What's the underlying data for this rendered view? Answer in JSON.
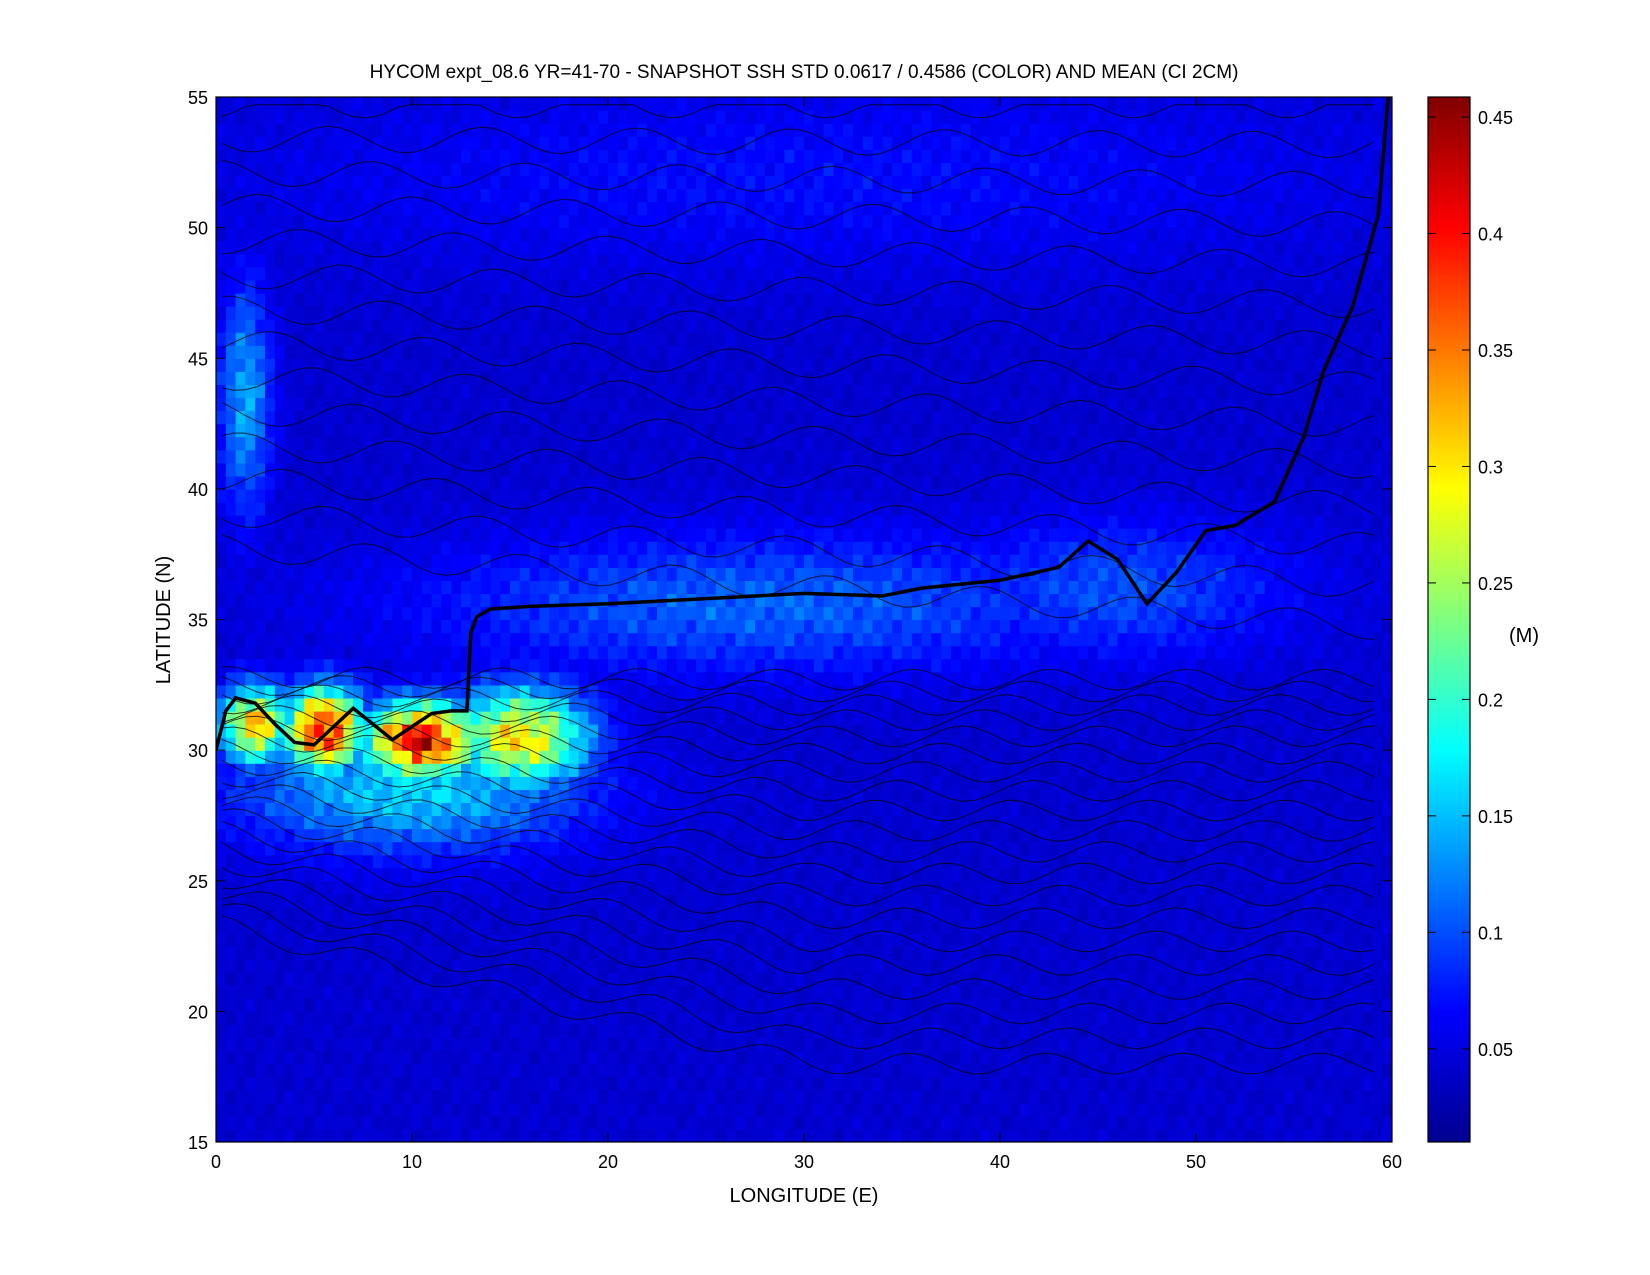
{
  "chart_data": {
    "type": "heatmap",
    "title": "HYCOM expt_08.6 YR=41-70 - SNAPSHOT SSH STD 0.0617 / 0.4586 (COLOR) AND MEAN (CI 2CM)",
    "xlabel": "LONGITUDE (E)",
    "ylabel": "LATITUDE (N)",
    "xlim": [
      0,
      60
    ],
    "ylim": [
      15,
      55
    ],
    "x_ticks": [
      0,
      10,
      20,
      30,
      40,
      50,
      60
    ],
    "y_ticks": [
      15,
      20,
      25,
      30,
      35,
      40,
      45,
      50,
      55
    ],
    "colorbar": {
      "label": "(M)",
      "range": [
        0.01,
        0.4586
      ],
      "ticks": [
        0.05,
        0.1,
        0.15,
        0.2,
        0.25,
        0.3,
        0.35,
        0.4,
        0.45
      ],
      "colormap": "jet"
    },
    "std_min": 0.0617,
    "std_max": 0.4586,
    "contour_interval_label": "CI 2CM",
    "fields": {
      "background_std": 0.045,
      "features": [
        {
          "name": "western boundary current core",
          "lon": 2.0,
          "lat": 31.0,
          "std": 0.32,
          "sigma_lon": 1.2,
          "sigma_lat": 1.0
        },
        {
          "name": "meander maximum a",
          "lon": 5.5,
          "lat": 30.8,
          "std": 0.4,
          "sigma_lon": 1.4,
          "sigma_lat": 1.1
        },
        {
          "name": "meander maximum b",
          "lon": 10.5,
          "lat": 30.4,
          "std": 0.42,
          "sigma_lon": 2.0,
          "sigma_lat": 1.0
        },
        {
          "name": "meander maximum c",
          "lon": 15.5,
          "lat": 30.5,
          "std": 0.3,
          "sigma_lon": 2.4,
          "sigma_lat": 1.3
        },
        {
          "name": "southern recirculation band",
          "lon": 10.0,
          "lat": 28.5,
          "std": 0.16,
          "sigma_lon": 6.0,
          "sigma_lat": 1.6
        },
        {
          "name": "eastward jet band",
          "lon": 28.0,
          "lat": 35.6,
          "std": 0.11,
          "sigma_lon": 12.0,
          "sigma_lat": 1.8
        },
        {
          "name": "northeast extension",
          "lon": 46.0,
          "lat": 36.2,
          "std": 0.1,
          "sigma_lon": 6.0,
          "sigma_lat": 1.8
        },
        {
          "name": "western boundary north",
          "lon": 1.5,
          "lat": 43.5,
          "std": 0.14,
          "sigma_lon": 0.9,
          "sigma_lat": 3.0
        },
        {
          "name": "subpolar eddy field",
          "lon": 30.0,
          "lat": 52.0,
          "std": 0.07,
          "sigma_lon": 20.0,
          "sigma_lat": 2.5
        }
      ]
    },
    "front_line": {
      "lon": [
        0.0,
        0.5,
        1.0,
        2.0,
        3.0,
        4.0,
        5.0,
        6.0,
        7.0,
        8.0,
        9.0,
        10.0,
        11.0,
        12.0,
        12.8,
        13.0,
        13.3,
        14.0,
        16.0,
        20.0,
        25.0,
        30.0,
        34.0,
        36.0,
        40.0,
        43.0,
        44.5,
        46.0,
        47.5,
        49.0,
        50.5,
        52.0,
        54.0,
        55.5,
        56.5,
        58.0,
        59.3,
        59.8
      ],
      "lat": [
        30.0,
        31.5,
        32.0,
        31.8,
        31.0,
        30.3,
        30.2,
        30.9,
        31.6,
        31.0,
        30.4,
        30.9,
        31.4,
        31.5,
        31.5,
        34.5,
        35.1,
        35.4,
        35.5,
        35.6,
        35.8,
        36.0,
        35.9,
        36.2,
        36.5,
        37.0,
        38.0,
        37.3,
        35.6,
        36.8,
        38.4,
        38.6,
        39.5,
        42.0,
        44.5,
        47.0,
        50.5,
        55.0
      ]
    }
  }
}
